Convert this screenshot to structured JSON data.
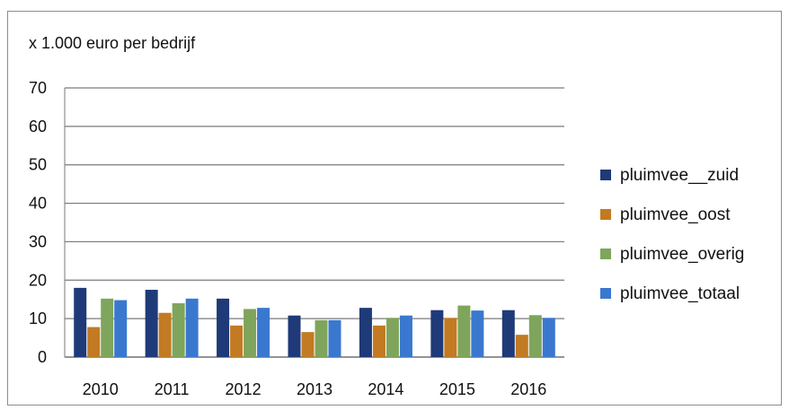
{
  "chart_data": {
    "type": "bar",
    "title": "",
    "ylabel": "x 1.000 euro per bedrijf",
    "xlabel": "",
    "ylim": [
      0,
      70
    ],
    "yticks": [
      0,
      10,
      20,
      30,
      40,
      50,
      60,
      70
    ],
    "grid": true,
    "legend_position": "right",
    "categories": [
      "2010",
      "2011",
      "2012",
      "2013",
      "2014",
      "2015",
      "2016"
    ],
    "series": [
      {
        "name": "pluimvee__zuid",
        "color": "#1f3a78",
        "values": [
          18,
          17.5,
          15.2,
          10.8,
          12.8,
          12.2,
          12.2
        ]
      },
      {
        "name": "pluimvee_oost",
        "color": "#c27a23",
        "values": [
          7.8,
          11.5,
          8.2,
          6.5,
          8.2,
          10.2,
          5.8
        ]
      },
      {
        "name": "pluimvee_overig",
        "color": "#7fa55c",
        "values": [
          15.2,
          14,
          12.5,
          9.6,
          10.2,
          13.4,
          10.9
        ]
      },
      {
        "name": "pluimvee_totaal",
        "color": "#3a78cf",
        "values": [
          14.8,
          15.2,
          12.8,
          9.6,
          10.8,
          12.1,
          10.2
        ]
      }
    ]
  }
}
